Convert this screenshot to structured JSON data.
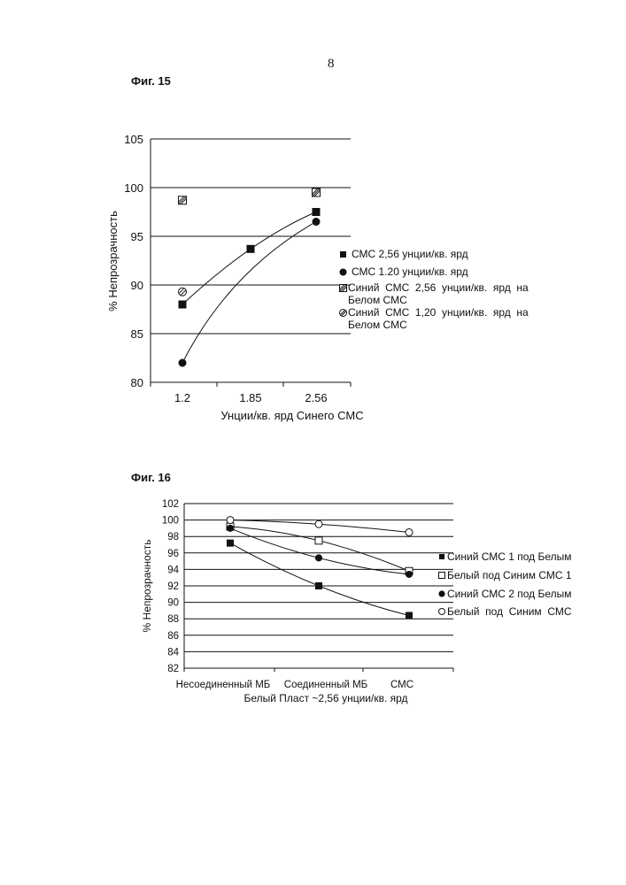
{
  "page_number": "8",
  "figures": [
    {
      "label": "Фиг. 15",
      "legend_entries": [
        {
          "text": "СМС 2,56 унции/кв. ярд",
          "marker": "filled-square"
        },
        {
          "text": "СМС 1.20 унции/кв. ярд",
          "marker": "filled-circle"
        },
        {
          "text": "Синий  СМС  2,56  унции/кв.  ярд  на\nБелом СМС",
          "marker": "hatched-square"
        },
        {
          "text": "Синий  СМС  1,20  унции/кв.  ярд  на\nБелом СМС",
          "marker": "hatched-circle"
        }
      ]
    },
    {
      "label": "Фиг. 16",
      "legend_entries": [
        {
          "text": "Синий СМС 1 под Белым",
          "marker": "filled-square"
        },
        {
          "text": "Белый под Синим СМС 1",
          "marker": "open-square"
        },
        {
          "text": "Синий СМС 2 под Белым",
          "marker": "filled-circle"
        },
        {
          "text": "Белый  под  Синим  СМС",
          "marker": "open-circle"
        }
      ]
    }
  ],
  "chart_data": [
    {
      "type": "scatter",
      "title": "",
      "xlabel": "Унции/кв. ярд Синего СМС",
      "ylabel": "% Непрозрачность",
      "categories": [
        "1.2",
        "1.85",
        "2.56"
      ],
      "ylim": [
        80,
        105
      ],
      "yticks": [
        "80",
        "85",
        "90",
        "95",
        "100",
        "105"
      ],
      "grid": true,
      "legend_position": "right",
      "series": [
        {
          "name": "СМС 2,56 унции/кв. ярд",
          "marker": "filled-square",
          "values": [
            88.0,
            93.7,
            97.5
          ],
          "trendline": true
        },
        {
          "name": "СМС 1.20 унции/кв. ярд",
          "marker": "filled-circle",
          "values": [
            82.0,
            null,
            96.5
          ],
          "trendline": true
        },
        {
          "name": "Синий СМС 2,56 унции/кв. ярд на Белом СМС",
          "marker": "hatched-square",
          "values": [
            98.7,
            null,
            99.5
          ],
          "trendline": false
        },
        {
          "name": "Синий СМС 1,20 унции/кв. ярд на Белом СМС",
          "marker": "hatched-circle",
          "values": [
            89.3,
            null,
            null
          ],
          "trendline": false
        }
      ]
    },
    {
      "type": "line",
      "title": "",
      "xlabel": "Белый Пласт ~2,56 унции/кв. ярд",
      "ylabel": "% Непрозрачность",
      "categories": [
        "Несоединенный МБ",
        "Соединенный МБ",
        "СМС"
      ],
      "ylim": [
        82,
        102
      ],
      "yticks": [
        "82",
        "84",
        "86",
        "88",
        "90",
        "92",
        "94",
        "96",
        "98",
        "100",
        "102"
      ],
      "grid": true,
      "legend_position": "right",
      "series": [
        {
          "name": "Синий СМС 1 под Белым",
          "marker": "filled-square",
          "values": [
            97.2,
            92.0,
            88.4
          ]
        },
        {
          "name": "Белый под Синим СМС 1",
          "marker": "open-square",
          "values": [
            99.2,
            97.5,
            93.8
          ]
        },
        {
          "name": "Синий СМС 2 под Белым",
          "marker": "filled-circle",
          "values": [
            99.0,
            95.4,
            93.4
          ]
        },
        {
          "name": "Белый под Синим СМС",
          "marker": "open-circle",
          "values": [
            100.0,
            99.5,
            98.5
          ]
        }
      ]
    }
  ]
}
